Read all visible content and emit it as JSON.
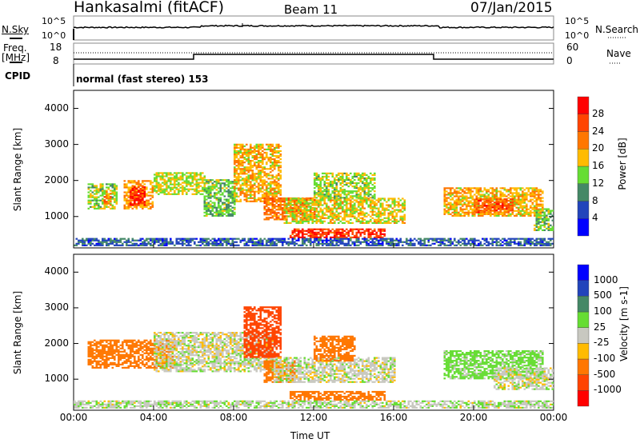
{
  "header": {
    "title": "Hankasalmi (fitACF)",
    "beam": "Beam 11",
    "date": "07/Jan/2015"
  },
  "status_panels": {
    "nsky_label": "N.Sky",
    "nsearch_label": "N.Search",
    "nsky_ticks": [
      "10^5",
      "10^0"
    ],
    "nsearch_ticks": [
      "10^5",
      "10^0"
    ],
    "freq_label": "Freq.",
    "freq_unit": "[MHz]",
    "freq_ticks": [
      "18",
      "8"
    ],
    "nave_label": "Nave",
    "nave_ticks": [
      "60",
      "0"
    ],
    "cpid_label": "CPID",
    "cpid_value": "normal (fast stereo) 153"
  },
  "chart_data": [
    {
      "type": "heatmap",
      "name": "power",
      "ylabel": "Slant Range [km]",
      "xlabel": "",
      "ylim": [
        130,
        4500
      ],
      "xlim": [
        0,
        24
      ],
      "yticks": [
        "1000",
        "2000",
        "3000",
        "4000"
      ],
      "colorbar": {
        "label": "Power [dB]",
        "ticks": [
          "28",
          "24",
          "20",
          "16",
          "12",
          "8",
          "4"
        ],
        "colors": [
          "#0000ff",
          "#2244bb",
          "#448866",
          "#66dd33",
          "#ffbb00",
          "#ff7700",
          "#ff4400",
          "#ff0000"
        ],
        "bounds": [
          0,
          4,
          8,
          12,
          16,
          20,
          24,
          28,
          32
        ]
      },
      "patches": [
        [
          0.7,
          2.2,
          1200,
          1900,
          15
        ],
        [
          1.5,
          1.9,
          1300,
          1700,
          22
        ],
        [
          2.5,
          4.0,
          1200,
          2000,
          20
        ],
        [
          2.8,
          3.6,
          1300,
          1800,
          29
        ],
        [
          4,
          6.5,
          1600,
          2200,
          16
        ],
        [
          6.5,
          8,
          1000,
          2000,
          13
        ],
        [
          8,
          10.3,
          1400,
          3000,
          19
        ],
        [
          9.5,
          12,
          900,
          1500,
          23
        ],
        [
          10.5,
          16.5,
          800,
          1500,
          17
        ],
        [
          10.8,
          15.5,
          400,
          650,
          27
        ],
        [
          12,
          15,
          1500,
          2200,
          15
        ],
        [
          18.5,
          23.5,
          1000,
          1800,
          19
        ],
        [
          20,
          22,
          1100,
          1500,
          25
        ],
        [
          23,
          24,
          600,
          1200,
          14
        ],
        [
          0,
          24,
          180,
          380,
          7
        ]
      ]
    },
    {
      "type": "heatmap",
      "name": "velocity",
      "ylabel": "Slant Range [km]",
      "xlabel": "Time UT",
      "ylim": [
        130,
        4500
      ],
      "xlim": [
        0,
        24
      ],
      "yticks": [
        "1000",
        "2000",
        "3000",
        "4000"
      ],
      "xticks": [
        "00:00",
        "04:00",
        "08:00",
        "12:00",
        "16:00",
        "20:00",
        "00:00"
      ],
      "colorbar": {
        "label": "Velocity [m s-1]",
        "ticks": [
          "1000",
          "500",
          "100",
          "25",
          "-25",
          "-100",
          "-500",
          "-1000"
        ],
        "colors": [
          "#ff0000",
          "#ff4400",
          "#ff7700",
          "#ffbb00",
          "#c8c8c0",
          "#66dd33",
          "#448866",
          "#2244bb",
          "#0000ff"
        ],
        "bounds": [
          -1500,
          -1000,
          -500,
          -100,
          -25,
          25,
          100,
          500,
          1000,
          1500
        ]
      },
      "patches": [
        [
          0.7,
          5,
          1300,
          2100,
          -150
        ],
        [
          4,
          10,
          1200,
          2300,
          0
        ],
        [
          8.5,
          10.3,
          1600,
          3000,
          -700
        ],
        [
          9.5,
          11,
          900,
          1500,
          -300
        ],
        [
          10,
          16,
          900,
          1600,
          0
        ],
        [
          12,
          14,
          1500,
          2200,
          -200
        ],
        [
          10.8,
          15.5,
          400,
          650,
          -150
        ],
        [
          18.5,
          23.5,
          1000,
          1800,
          50
        ],
        [
          21,
          24,
          700,
          1300,
          0
        ],
        [
          0,
          24,
          180,
          380,
          10
        ]
      ]
    }
  ]
}
